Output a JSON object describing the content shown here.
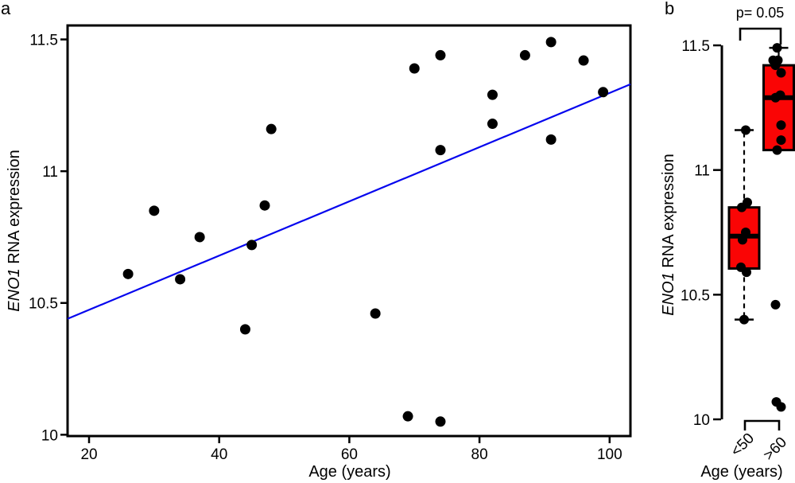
{
  "figure": {
    "panel_a_label": "a",
    "panel_b_label": "b"
  },
  "labels": {
    "gene_symbol": "ENO1",
    "ylabel_rest": " RNA expression",
    "xlabel": "Age (years)"
  },
  "colors": {
    "point": "#000000",
    "trendline": "#0505ee",
    "box_fill": "#fa0505",
    "box_border": "#000000",
    "axis": "#000000"
  },
  "chart_data": [
    {
      "id": "panel-a",
      "type": "scatter",
      "xlabel": "Age (years)",
      "ylabel": "ENO1 RNA expression",
      "xlim": [
        16.7,
        103.2
      ],
      "ylim": [
        9.995,
        11.553
      ],
      "x_ticks": [
        20,
        40,
        60,
        80,
        100
      ],
      "x_tick_labels": [
        "20",
        "40",
        "60",
        "80",
        "100"
      ],
      "y_ticks": [
        11.5,
        11,
        10.5,
        10
      ],
      "y_tick_labels": [
        "11.5",
        "11",
        "10.5",
        "10"
      ],
      "grid": false,
      "points": [
        [
          26,
          10.61
        ],
        [
          30,
          10.85
        ],
        [
          34,
          10.59
        ],
        [
          37,
          10.75
        ],
        [
          44,
          10.4
        ],
        [
          45,
          10.72
        ],
        [
          47,
          10.87
        ],
        [
          48,
          11.16
        ],
        [
          64,
          10.46
        ],
        [
          69,
          10.07
        ],
        [
          70,
          11.39
        ],
        [
          74,
          11.44
        ],
        [
          74,
          11.08
        ],
        [
          74,
          10.05
        ],
        [
          82,
          11.29
        ],
        [
          82,
          11.18
        ],
        [
          87,
          11.44
        ],
        [
          91,
          11.49
        ],
        [
          91,
          11.12
        ],
        [
          96,
          11.42
        ],
        [
          99,
          11.3
        ]
      ],
      "trendline": {
        "x1": 16.7,
        "y1": 10.44,
        "x2": 103.2,
        "y2": 11.33
      }
    },
    {
      "id": "panel-b",
      "type": "box",
      "xlabel": "Age (years)",
      "ylabel": "ENO1 RNA expression",
      "annotation": "p= 0.05",
      "ylim": [
        10,
        11.5
      ],
      "y_ticks": [
        11.5,
        11,
        10.5,
        10
      ],
      "y_tick_labels": [
        "11.5",
        "11",
        "10.5",
        "10"
      ],
      "groups": [
        {
          "label": "<50",
          "values": [
            10.4,
            10.59,
            10.61,
            10.72,
            10.75,
            10.85,
            10.87,
            11.16
          ],
          "box": {
            "q1": 10.605,
            "median": 10.735,
            "q3": 10.85,
            "whisker_low": 10.4,
            "whisker_high": 11.16,
            "outliers": []
          }
        },
        {
          "label": ">60",
          "values": [
            10.05,
            10.07,
            10.46,
            11.08,
            11.12,
            11.18,
            11.29,
            11.3,
            11.39,
            11.42,
            11.44,
            11.44,
            11.49
          ],
          "box": {
            "q1": 11.08,
            "median": 11.29,
            "q3": 11.42,
            "whisker_low": 11.08,
            "whisker_high": 11.49,
            "outliers": [
              10.46,
              10.07,
              10.05
            ]
          }
        }
      ]
    }
  ]
}
